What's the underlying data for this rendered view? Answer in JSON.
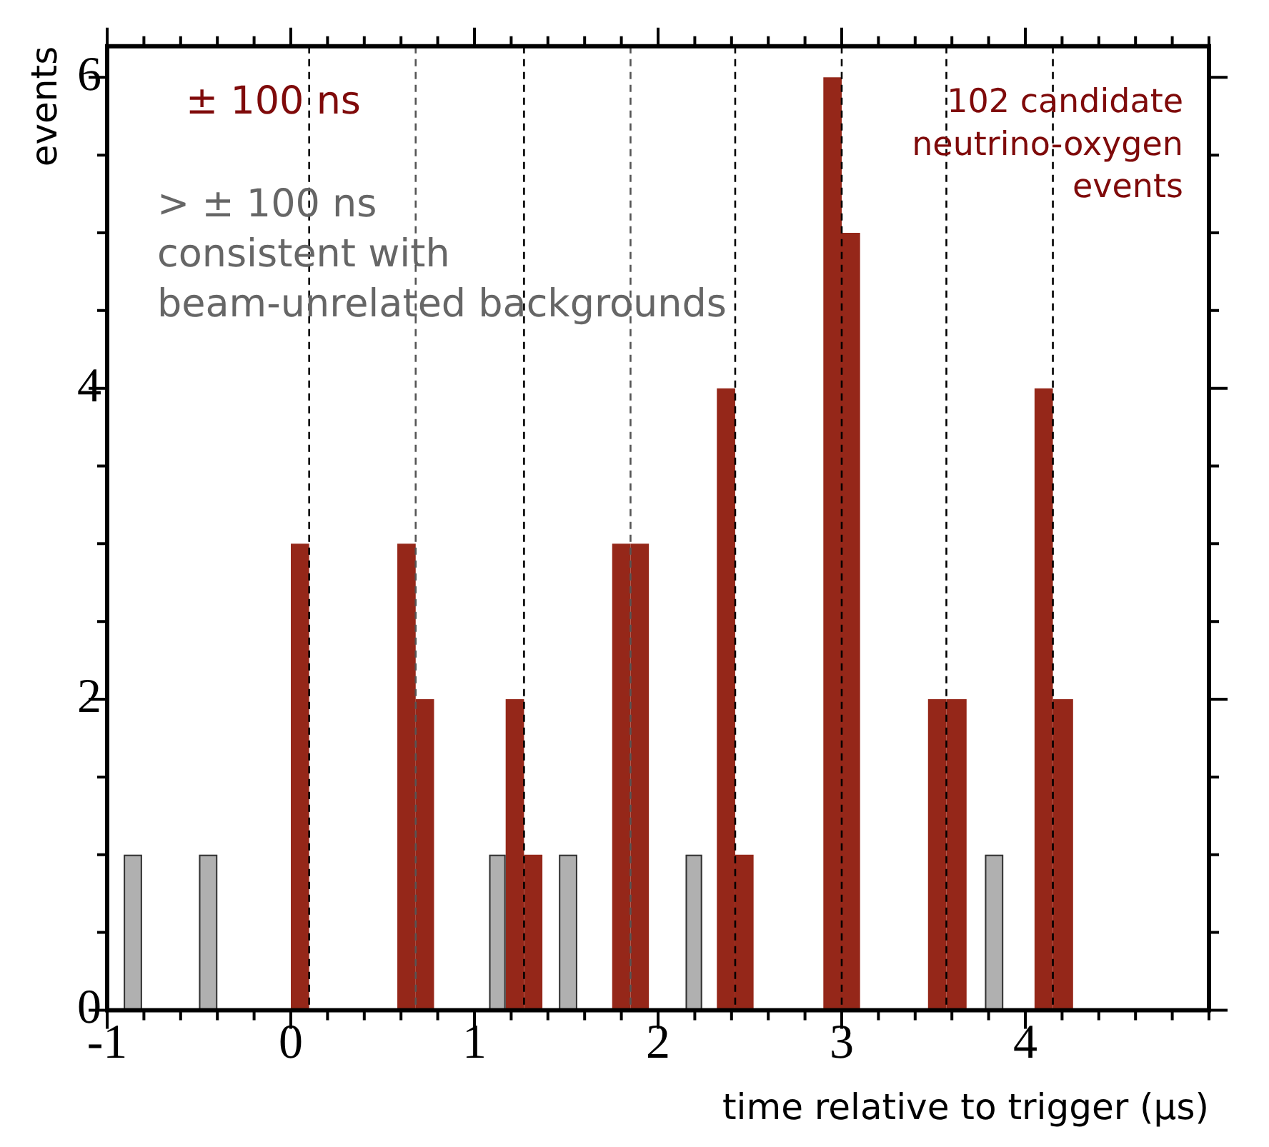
{
  "chart_data": {
    "type": "histogram",
    "xlabel": "time relative to trigger (µs)",
    "ylabel": "events",
    "bins": [
      -0.91,
      -0.81,
      -0.5,
      -0.4,
      0,
      0.1,
      0.58,
      0.68,
      0.78,
      1.08,
      1.17,
      1.27,
      1.37,
      1.46,
      1.56,
      1.75,
      1.85,
      1.95,
      2.15,
      2.24,
      2.32,
      2.42,
      2.52,
      2.9,
      3.0,
      3.1,
      3.47,
      3.57,
      3.68,
      3.78,
      3.88,
      4.05,
      4.15,
      4.26
    ],
    "series": [
      {
        "color": "#952719",
        "values": [
          0,
          0,
          0,
          0,
          3,
          0,
          3,
          2,
          0,
          0,
          2,
          1,
          0,
          0,
          0,
          3,
          3,
          0,
          0,
          0,
          4,
          1,
          0,
          6,
          5,
          0,
          2,
          2,
          0,
          0,
          0,
          4,
          2
        ]
      },
      {
        "color": "#b0b0b0",
        "values": [
          1,
          0,
          1,
          0,
          0,
          0,
          0,
          0,
          0,
          1,
          0,
          0,
          0,
          1,
          0,
          0,
          0,
          0,
          1,
          0,
          0,
          0,
          0,
          0,
          0,
          0,
          0,
          0,
          0,
          1,
          0,
          0,
          0
        ]
      }
    ],
    "xlim": [
      -1,
      5
    ],
    "xticks": [
      -1,
      {
        "value": -0.8,
        "label": null
      },
      {
        "value": -0.6,
        "label": null
      },
      {
        "value": -0.4,
        "label": null
      },
      {
        "value": -0.2,
        "label": null
      },
      0,
      {
        "value": 0.2,
        "label": null
      },
      {
        "value": 0.4,
        "label": null
      },
      {
        "value": 0.6,
        "label": null
      },
      {
        "value": 0.8,
        "label": null
      },
      1,
      {
        "value": 1.2,
        "label": null
      },
      {
        "value": 1.4,
        "label": null
      },
      {
        "value": 1.6,
        "label": null
      },
      {
        "value": 1.8,
        "label": null
      },
      2,
      {
        "value": 2.2,
        "label": null
      },
      {
        "value": 2.4,
        "label": null
      },
      {
        "value": 2.6,
        "label": null
      },
      {
        "value": 2.8,
        "label": null
      },
      3,
      {
        "value": 3.2,
        "label": null
      },
      {
        "value": 3.4,
        "label": null
      },
      {
        "value": 3.6,
        "label": null
      },
      {
        "value": 3.8,
        "label": null
      },
      4,
      {
        "value": 4.2,
        "label": null
      },
      {
        "value": 4.4,
        "label": null
      },
      {
        "value": 4.6,
        "label": null
      },
      {
        "value": 4.8,
        "label": null
      },
      {
        "value": 5,
        "label": null
      }
    ],
    "ylim": [
      0,
      6.2
    ],
    "yticks": [
      0,
      {
        "value": 0.5,
        "label": null
      },
      {
        "value": 1,
        "label": null
      },
      {
        "value": 1.5,
        "label": null
      },
      2,
      {
        "value": 2.5,
        "label": null
      },
      {
        "value": 3,
        "label": null
      },
      {
        "value": 3.5,
        "label": null
      },
      4,
      {
        "value": 4.5,
        "label": null
      },
      {
        "value": 5,
        "label": null
      },
      {
        "value": 5.5,
        "label": null
      },
      6
    ],
    "ref_lines": [
      {
        "axis": "x",
        "value": 0.1,
        "color": "#000000",
        "line_style": "dashed"
      },
      {
        "axis": "x",
        "value": 0.68,
        "color": "#555555",
        "line_style": "dashed"
      },
      {
        "axis": "x",
        "value": 1.27,
        "color": "#000000",
        "line_style": "dashed"
      },
      {
        "axis": "x",
        "value": 1.85,
        "color": "#555555",
        "line_style": "dashed"
      },
      {
        "axis": "x",
        "value": 2.42,
        "color": "#000000",
        "line_style": "dashed"
      },
      {
        "axis": "x",
        "value": 3.0,
        "color": "#000000",
        "line_style": "dashed"
      },
      {
        "axis": "x",
        "value": 3.57,
        "color": "#000000",
        "line_style": "dashed"
      },
      {
        "axis": "x",
        "value": 4.15,
        "color": "#000000",
        "line_style": "dashed"
      }
    ],
    "annotations": [
      "± 100 ns",
      "> ± 100 ns\nconsistent with\nbeam-unrelated backgrounds",
      "102 candidate\nneutrino-oxygen\nevents"
    ]
  }
}
